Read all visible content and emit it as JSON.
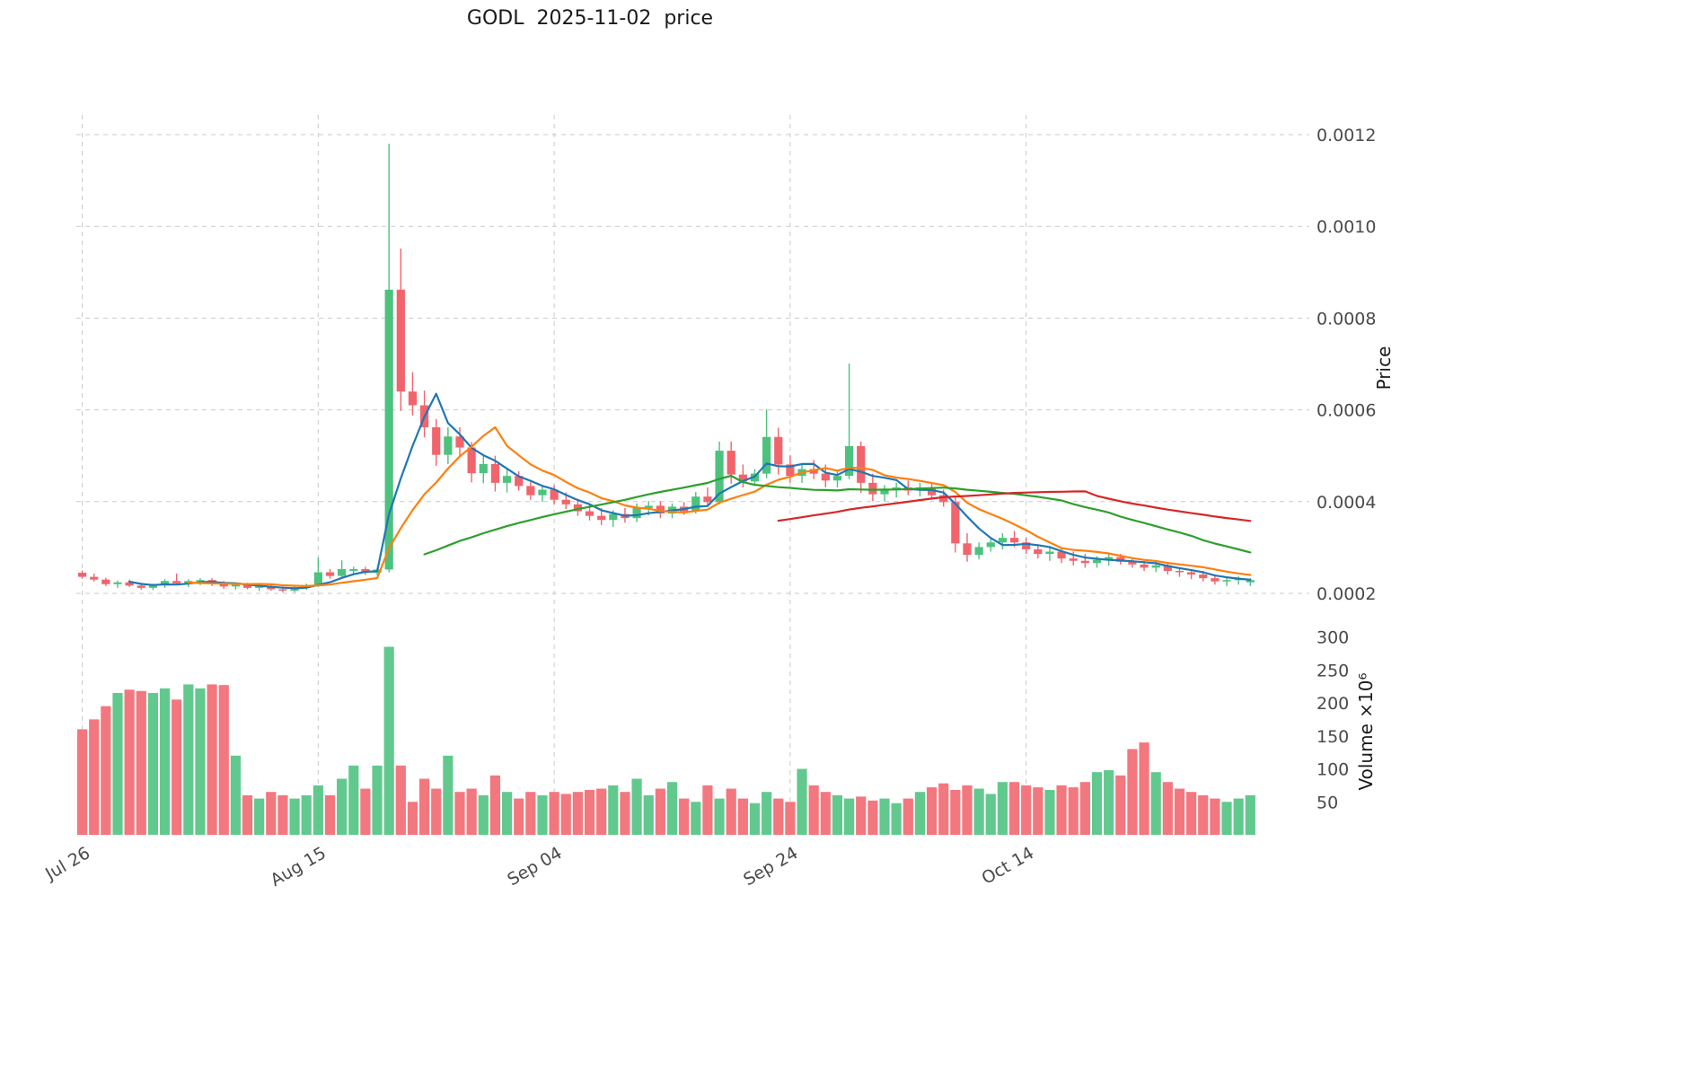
{
  "chart_data": {
    "type": "candlestick+volume",
    "title": "GODL  2025-11-02  price",
    "colors": {
      "up": "#4cc27e",
      "down": "#f1646c",
      "grid": "#c9c9c9",
      "text": "#4a4a4a",
      "title": "#1a1a1a"
    },
    "price_axis": {
      "label": "Price",
      "ticks": [
        0.0002,
        0.0004,
        0.0006,
        0.0008,
        0.001,
        0.0012
      ]
    },
    "volume_axis": {
      "label": "Volume ×10⁶",
      "ticks": [
        50,
        100,
        150,
        200,
        250,
        300
      ]
    },
    "x_ticks": [
      {
        "i": 0,
        "label": "Jul 26"
      },
      {
        "i": 20,
        "label": "Aug 15"
      },
      {
        "i": 40,
        "label": "Sep 04"
      },
      {
        "i": 60,
        "label": "Sep 24"
      },
      {
        "i": 80,
        "label": "Oct 14"
      }
    ],
    "moving_averages": [
      {
        "window": 5,
        "color": "#1f77b4"
      },
      {
        "window": 10,
        "color": "#ff7f0e"
      },
      {
        "window": 30,
        "color": "#2ca02c"
      },
      {
        "window": 60,
        "color": "#d62728"
      }
    ],
    "ohlcv_columns": [
      "open",
      "high",
      "low",
      "close",
      "volume_millions"
    ],
    "ohlcv": [
      [
        0.000245,
        0.00025,
        0.000232,
        0.000236,
        160
      ],
      [
        0.000236,
        0.000243,
        0.000226,
        0.00023,
        175
      ],
      [
        0.00023,
        0.000234,
        0.000216,
        0.00022,
        195
      ],
      [
        0.00022,
        0.000228,
        0.000212,
        0.000224,
        215
      ],
      [
        0.000224,
        0.00023,
        0.000214,
        0.000217,
        220
      ],
      [
        0.000217,
        0.000223,
        0.000208,
        0.000212,
        218
      ],
      [
        0.000212,
        0.000221,
        0.000207,
        0.000218,
        215
      ],
      [
        0.000218,
        0.000231,
        0.000212,
        0.000227,
        222
      ],
      [
        0.000227,
        0.000243,
        0.000219,
        0.000222,
        205
      ],
      [
        0.000222,
        0.000231,
        0.000214,
        0.000227,
        228
      ],
      [
        0.000227,
        0.000233,
        0.000218,
        0.000229,
        222
      ],
      [
        0.000229,
        0.000233,
        0.000216,
        0.000221,
        228
      ],
      [
        0.000221,
        0.000227,
        0.00021,
        0.000215,
        227
      ],
      [
        0.000215,
        0.000223,
        0.000208,
        0.000219,
        120
      ],
      [
        0.000219,
        0.000223,
        0.000209,
        0.000212,
        60
      ],
      [
        0.000212,
        0.000219,
        0.000205,
        0.000216,
        55
      ],
      [
        0.000216,
        0.000219,
        0.000206,
        0.000209,
        65
      ],
      [
        0.000209,
        0.000215,
        0.000202,
        0.000206,
        60
      ],
      [
        0.000206,
        0.000216,
        0.000202,
        0.000213,
        55
      ],
      [
        0.000213,
        0.000221,
        0.000208,
        0.000218,
        60
      ],
      [
        0.000218,
        0.000278,
        0.000214,
        0.000246,
        75
      ],
      [
        0.000246,
        0.000253,
        0.000232,
        0.000238,
        60
      ],
      [
        0.000238,
        0.000272,
        0.000234,
        0.000253,
        85
      ],
      [
        0.000249,
        0.000258,
        0.000241,
        0.000253,
        105
      ],
      [
        0.000253,
        0.000258,
        0.00024,
        0.000245,
        70
      ],
      [
        0.000245,
        0.000256,
        0.000239,
        0.000252,
        105
      ],
      [
        0.000252,
        0.00118,
        0.000246,
        0.000862,
        285
      ],
      [
        0.000862,
        0.000952,
        0.000598,
        0.00064,
        105
      ],
      [
        0.00064,
        0.000682,
        0.000588,
        0.00061,
        50
      ],
      [
        0.00061,
        0.000642,
        0.00054,
        0.000562,
        85
      ],
      [
        0.000562,
        0.00058,
        0.000478,
        0.000502,
        70
      ],
      [
        0.000502,
        0.000562,
        0.000482,
        0.000542,
        120
      ],
      [
        0.000542,
        0.000562,
        0.000498,
        0.000518,
        65
      ],
      [
        0.000518,
        0.00053,
        0.000442,
        0.000462,
        70
      ],
      [
        0.000462,
        0.000502,
        0.00044,
        0.000482,
        60
      ],
      [
        0.000482,
        0.0005,
        0.000422,
        0.000441,
        90
      ],
      [
        0.000441,
        0.00047,
        0.00042,
        0.000456,
        65
      ],
      [
        0.000456,
        0.000466,
        0.000424,
        0.000434,
        55
      ],
      [
        0.000434,
        0.000445,
        0.000404,
        0.000414,
        65
      ],
      [
        0.000414,
        0.000436,
        0.0004,
        0.000426,
        60
      ],
      [
        0.000426,
        0.000436,
        0.000394,
        0.000404,
        65
      ],
      [
        0.000404,
        0.00042,
        0.000384,
        0.000394,
        62
      ],
      [
        0.000394,
        0.000406,
        0.000369,
        0.000379,
        65
      ],
      [
        0.000379,
        0.000395,
        0.000359,
        0.000369,
        68
      ],
      [
        0.000369,
        0.000386,
        0.000349,
        0.00036,
        70
      ],
      [
        0.00036,
        0.000381,
        0.000345,
        0.000373,
        75
      ],
      [
        0.000373,
        0.000386,
        0.000354,
        0.000364,
        65
      ],
      [
        0.000364,
        0.000396,
        0.000355,
        0.000386,
        85
      ],
      [
        0.000386,
        0.000401,
        0.00037,
        0.000391,
        60
      ],
      [
        0.000391,
        0.000401,
        0.000364,
        0.000374,
        70
      ],
      [
        0.000374,
        0.000396,
        0.000364,
        0.000389,
        80
      ],
      [
        0.000389,
        0.000399,
        0.000371,
        0.000379,
        55
      ],
      [
        0.000379,
        0.000421,
        0.000374,
        0.000411,
        50
      ],
      [
        0.000411,
        0.000431,
        0.000389,
        0.000399,
        75
      ],
      [
        0.000399,
        0.000531,
        0.000394,
        0.000511,
        55
      ],
      [
        0.000511,
        0.000531,
        0.000439,
        0.000459,
        70
      ],
      [
        0.000459,
        0.000481,
        0.000431,
        0.000444,
        55
      ],
      [
        0.000444,
        0.000471,
        0.000434,
        0.000461,
        48
      ],
      [
        0.000461,
        0.000601,
        0.000451,
        0.000541,
        65
      ],
      [
        0.000541,
        0.000561,
        0.000459,
        0.000481,
        55
      ],
      [
        0.000481,
        0.000501,
        0.000441,
        0.000456,
        50
      ],
      [
        0.000456,
        0.000481,
        0.000441,
        0.000471,
        100
      ],
      [
        0.000471,
        0.000491,
        0.000449,
        0.000461,
        75
      ],
      [
        0.000461,
        0.000481,
        0.000431,
        0.000446,
        65
      ],
      [
        0.000446,
        0.000466,
        0.000431,
        0.000456,
        60
      ],
      [
        0.000456,
        0.000701,
        0.000449,
        0.000521,
        55
      ],
      [
        0.000521,
        0.000531,
        0.000419,
        0.000441,
        58
      ],
      [
        0.000441,
        0.000461,
        0.000401,
        0.000416,
        52
      ],
      [
        0.000416,
        0.000436,
        0.000401,
        0.000426,
        55
      ],
      [
        0.000426,
        0.000441,
        0.000409,
        0.000431,
        48
      ],
      [
        0.000431,
        0.000446,
        0.000414,
        0.000424,
        55
      ],
      [
        0.000424,
        0.000441,
        0.000411,
        0.000431,
        65
      ],
      [
        0.000431,
        0.000441,
        0.000404,
        0.000414,
        72
      ],
      [
        0.000414,
        0.000426,
        0.000389,
        0.000399,
        78
      ],
      [
        0.000399,
        0.000409,
        0.000289,
        0.000309,
        68
      ],
      [
        0.000309,
        0.000331,
        0.000269,
        0.000284,
        75
      ],
      [
        0.000284,
        0.000311,
        0.000274,
        0.000301,
        70
      ],
      [
        0.000301,
        0.000321,
        0.000291,
        0.000311,
        62
      ],
      [
        0.000311,
        0.000331,
        0.000296,
        0.000321,
        80
      ],
      [
        0.000321,
        0.000336,
        0.000301,
        0.000311,
        80
      ],
      [
        0.000311,
        0.000321,
        0.000286,
        0.000296,
        75
      ],
      [
        0.000296,
        0.000306,
        0.000276,
        0.000286,
        72
      ],
      [
        0.000286,
        0.000301,
        0.000271,
        0.000291,
        68
      ],
      [
        0.000291,
        0.000301,
        0.000266,
        0.000276,
        75
      ],
      [
        0.000276,
        0.000291,
        0.000261,
        0.000271,
        72
      ],
      [
        0.000271,
        0.000286,
        0.000256,
        0.000266,
        80
      ],
      [
        0.000266,
        0.000281,
        0.000256,
        0.000273,
        95
      ],
      [
        0.000273,
        0.000286,
        0.000261,
        0.000279,
        98
      ],
      [
        0.000279,
        0.000286,
        0.000263,
        0.000269,
        90
      ],
      [
        0.000269,
        0.000279,
        0.000256,
        0.000263,
        130
      ],
      [
        0.000263,
        0.000271,
        0.000249,
        0.000256,
        140
      ],
      [
        0.000256,
        0.000269,
        0.000246,
        0.000261,
        95
      ],
      [
        0.000261,
        0.000266,
        0.000241,
        0.000249,
        80
      ],
      [
        0.000249,
        0.000256,
        0.000236,
        0.000246,
        70
      ],
      [
        0.000246,
        0.000253,
        0.000231,
        0.000241,
        65
      ],
      [
        0.000241,
        0.000249,
        0.000226,
        0.000233,
        60
      ],
      [
        0.000233,
        0.000241,
        0.000219,
        0.000226,
        55
      ],
      [
        0.000226,
        0.000236,
        0.000216,
        0.000229,
        50
      ],
      [
        0.000229,
        0.000237,
        0.000219,
        0.000231,
        55
      ],
      [
        0.000224,
        0.000233,
        0.000216,
        0.000229,
        60
      ]
    ]
  }
}
